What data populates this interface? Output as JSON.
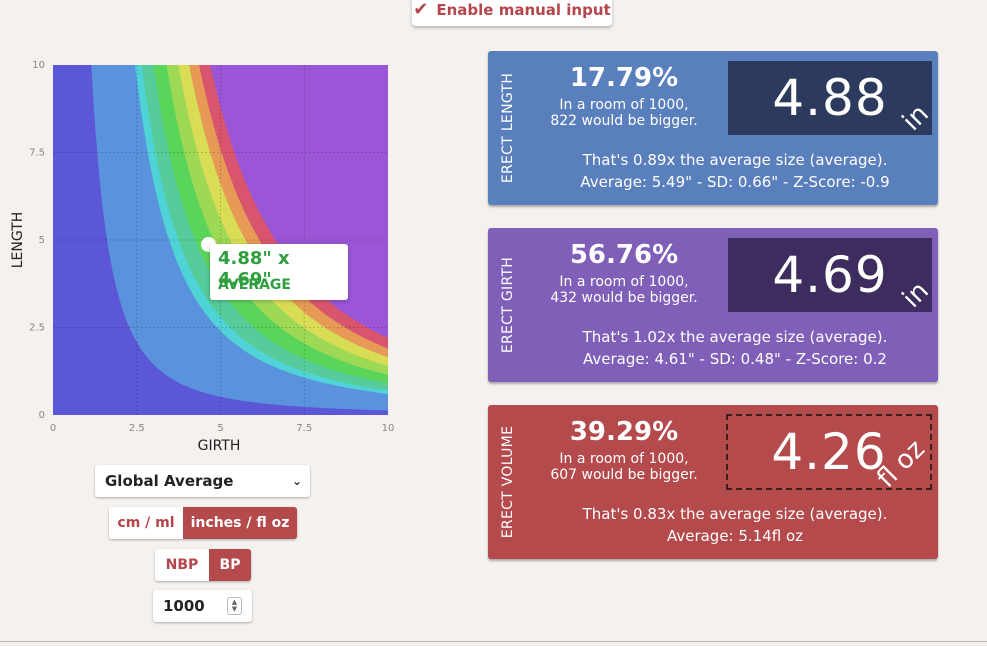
{
  "top_button": {
    "label": "Enable manual input",
    "icon": "check-icon"
  },
  "chart_data": {
    "type": "heatmap",
    "xlabel": "GIRTH",
    "ylabel": "LENGTH",
    "xlim": [
      0,
      10
    ],
    "ylim": [
      0,
      10
    ],
    "x_ticks": [
      "0",
      "2.5",
      "5",
      "7.5",
      "10"
    ],
    "y_ticks": [
      "0",
      "2.5",
      "5",
      "7.5",
      "10"
    ],
    "point": {
      "girth": 4.69,
      "length": 4.88
    },
    "grid": true
  },
  "tooltip": {
    "dims": "4.88\" x 4.69\"",
    "category": "AVERAGE"
  },
  "controls": {
    "region": "Global Average",
    "units": {
      "metric": "cm / ml",
      "imperial": "inches / fl oz",
      "selected": "inches / fl oz"
    },
    "mode": {
      "nbp": "NBP",
      "bp": "BP",
      "selected": "BP"
    },
    "sample_size": "1000"
  },
  "panels": {
    "length": {
      "title": "ERECT LENGTH",
      "percent": "17.79%",
      "room": "In a room of 1000,",
      "bigger": "822 would be bigger.",
      "value": "4.88",
      "unit": "in",
      "ratio": "That's 0.89x the average size (average).",
      "stats": "Average: 5.49\" - SD: 0.66\" - Z-Score: -0.9",
      "color": "#5a7fbd"
    },
    "girth": {
      "title": "ERECT GIRTH",
      "percent": "56.76%",
      "room": "In a room of 1000,",
      "bigger": "432 would be bigger.",
      "value": "4.69",
      "unit": "in",
      "ratio": "That's 1.02x the average size (average).",
      "stats": "Average: 4.61\" - SD: 0.48\" - Z-Score: 0.2",
      "color": "#7f5fb7"
    },
    "volume": {
      "title": "ERECT VOLUME",
      "percent": "39.29%",
      "room": "In a room of 1000,",
      "bigger": "607 would be bigger.",
      "value": "4.26",
      "unit": "fl oz",
      "ratio": "That's 0.83x the average size (average).",
      "stats": "Average: 5.14fl oz",
      "color": "#b44a4c"
    }
  }
}
